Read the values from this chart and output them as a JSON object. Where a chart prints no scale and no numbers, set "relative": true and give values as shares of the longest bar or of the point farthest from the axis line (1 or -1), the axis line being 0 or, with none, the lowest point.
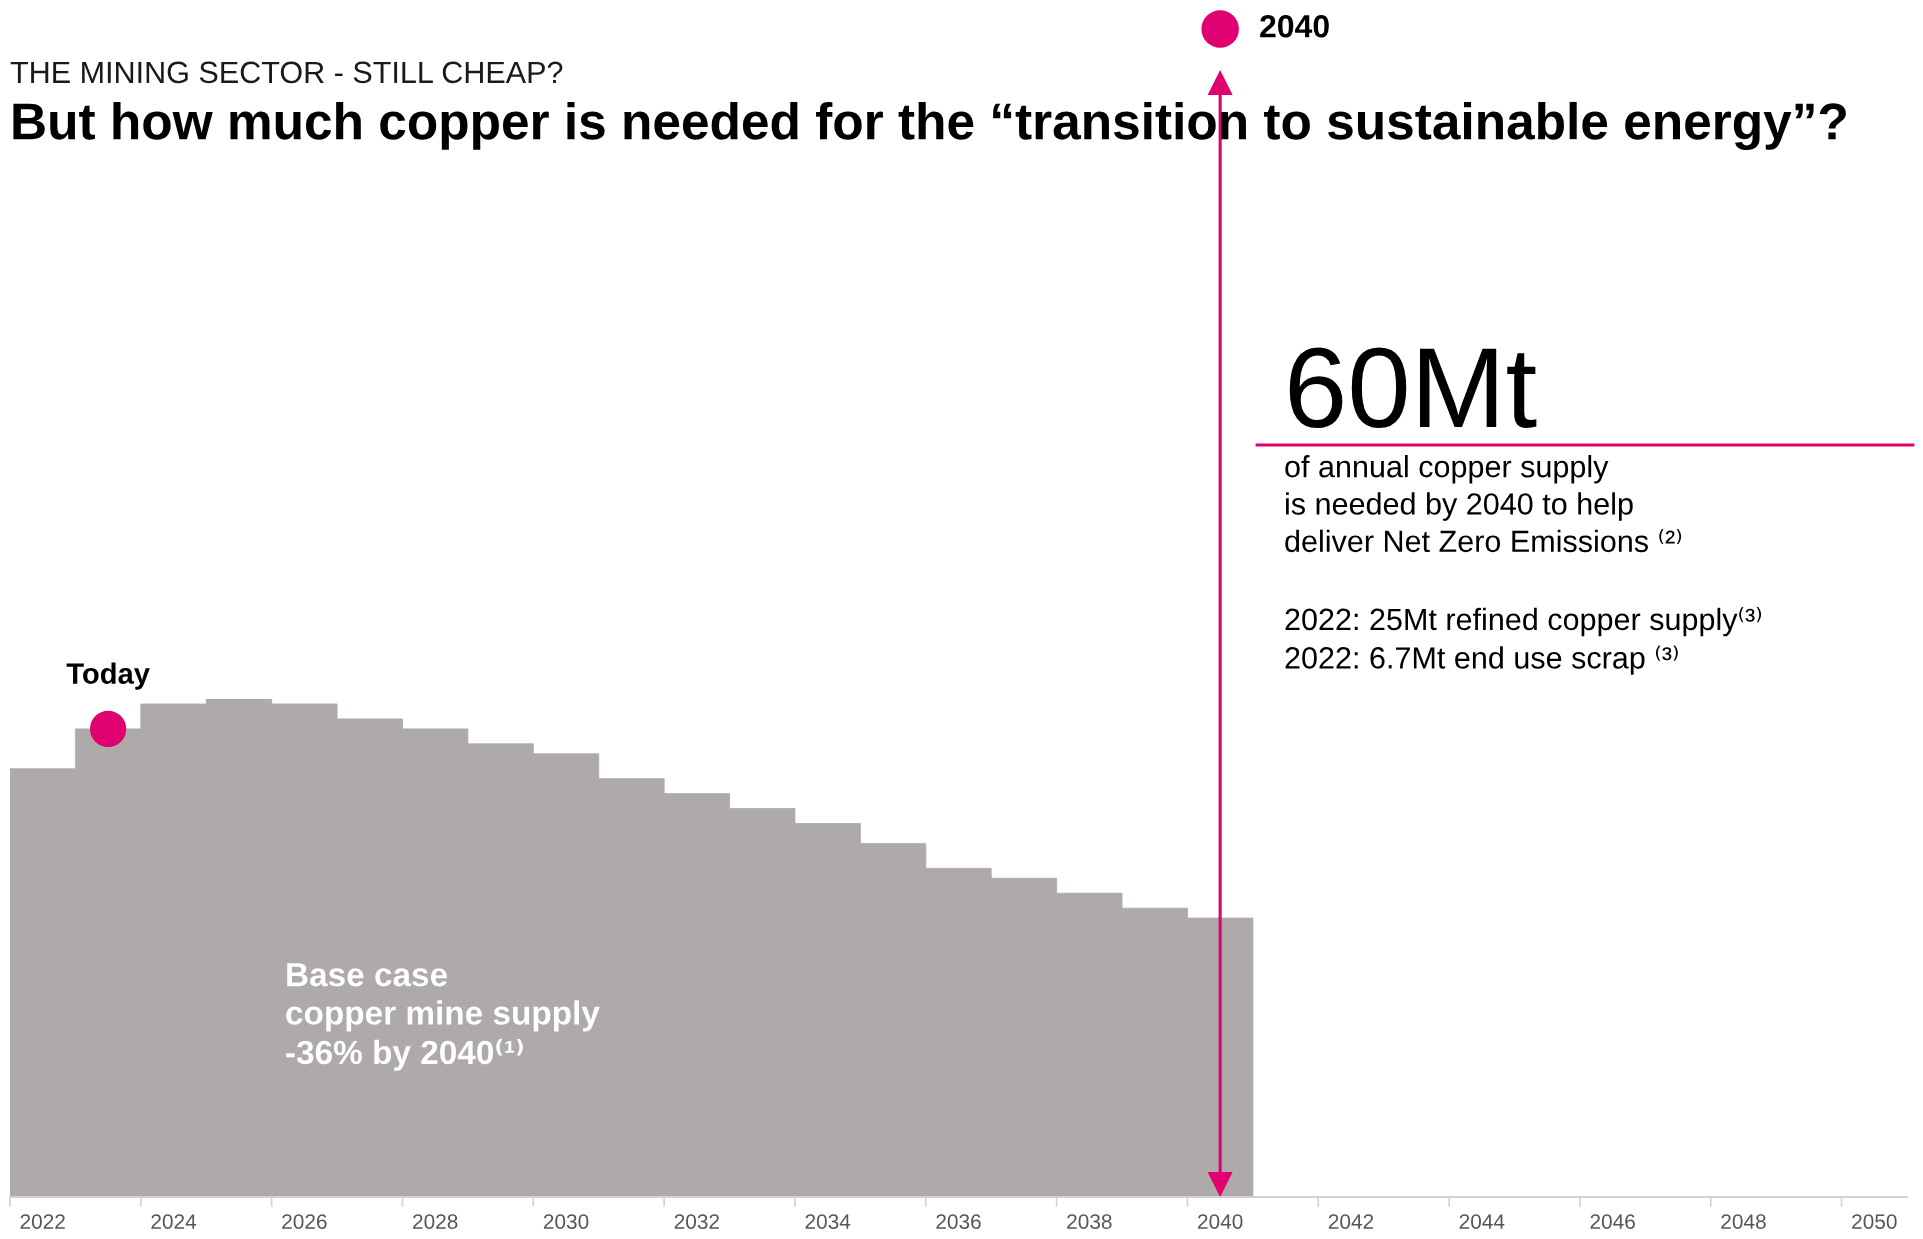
{
  "chart_data": {
    "type": "bar",
    "subtitle": "THE MINING SECTOR - STILL CHEAP?",
    "title": "But how much copper is needed for the “transition to sustainable energy”?",
    "x": [
      2022,
      2023,
      2024,
      2025,
      2026,
      2027,
      2028,
      2029,
      2030,
      2031,
      2032,
      2033,
      2034,
      2035,
      2036,
      2037,
      2038,
      2039,
      2040
    ],
    "series": [
      {
        "color": "#aeaaa9",
        "values": [
          0.86,
          0.94,
          0.99,
          1,
          0.99,
          0.96,
          0.94,
          0.91,
          0.89,
          0.84,
          0.81,
          0.78,
          0.75,
          0.71,
          0.66,
          0.64,
          0.61,
          0.58,
          0.56
        ]
      },
      {
        "type": "scatter",
        "x": [
          2023
        ],
        "values": [
          0.94
        ],
        "color": "#e0006f",
        "marker": "circle"
      }
    ],
    "relative": true,
    "xlim": [
      2021.5,
      2050.5
    ],
    "xticks": [
      {
        "value": 2021.5,
        "label": null
      },
      2022,
      {
        "value": 2023.5,
        "label": null
      },
      2024,
      {
        "value": 2025.5,
        "label": null
      },
      2026,
      {
        "value": 2027.5,
        "label": null
      },
      2028,
      {
        "value": 2029.5,
        "label": null
      },
      2030,
      {
        "value": 2031.5,
        "label": null
      },
      2032,
      {
        "value": 2033.5,
        "label": null
      },
      2034,
      {
        "value": 2035.5,
        "label": null
      },
      2036,
      {
        "value": 2037.5,
        "label": null
      },
      2038,
      {
        "value": 2039.5,
        "label": null
      },
      2040,
      {
        "value": 2041.5,
        "label": null
      },
      2042,
      {
        "value": 2043.5,
        "label": null
      },
      2044,
      {
        "value": 2045.5,
        "label": null
      },
      2046,
      {
        "value": 2047.5,
        "label": null
      },
      2048,
      {
        "value": 2049.5,
        "label": null
      },
      2050
    ],
    "ref_lines": [
      {
        "axis": "x",
        "value": 2040,
        "label": "2040",
        "color": "#e0006f"
      }
    ],
    "annotations": [
      {
        "text": "Today",
        "x": 2023,
        "y": 0.94
      },
      "Base case\ncopper mine supply\n-36% by 2040⁽¹⁾",
      "60Mt",
      "of annual copper supply\nis needed by 2040 to help\ndeliver Net Zero Emissions ⁽²⁾",
      "2022: 25Mt refined copper supply⁽³⁾\n2022: 6.7Mt end use scrap ⁽³⁾"
    ]
  }
}
